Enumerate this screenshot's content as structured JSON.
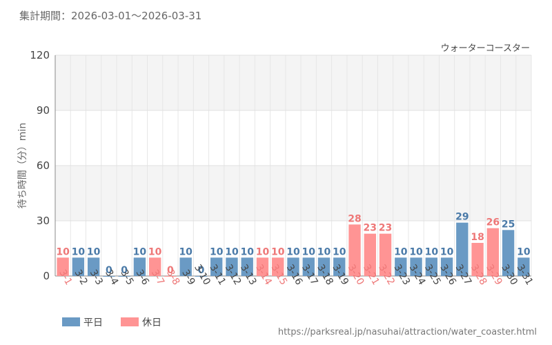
{
  "header": {
    "period_label": "集計期間：2026-03-01～2026-03-31"
  },
  "footer": {
    "url": "https://parksreal.jp/nasuhai/attraction/water_coaster.html"
  },
  "colors": {
    "weekday": "#6a9ac4",
    "holiday": "#ff9494",
    "weekday_label": "#4a7aa8",
    "holiday_label": "#ee7777"
  },
  "chart_data": {
    "type": "bar",
    "title": "ウォーターコースター",
    "ylabel": "待ち時間（分）min",
    "ylim": [
      0,
      120
    ],
    "yticks": [
      0,
      30,
      60,
      90,
      120
    ],
    "categories": [
      "3-1",
      "3-2",
      "3-3",
      "3-4",
      "3-5",
      "3-6",
      "3-7",
      "3-8",
      "3-9",
      "3-10",
      "3-11",
      "3-12",
      "3-13",
      "3-14",
      "3-15",
      "3-16",
      "3-17",
      "3-18",
      "3-19",
      "3-20",
      "3-21",
      "3-22",
      "3-23",
      "3-24",
      "3-25",
      "3-26",
      "3-27",
      "3-28",
      "3-29",
      "3-30",
      "3-31"
    ],
    "values": [
      10,
      10,
      10,
      0,
      0,
      10,
      10,
      0,
      10,
      0,
      10,
      10,
      10,
      10,
      10,
      10,
      10,
      10,
      10,
      28,
      23,
      23,
      10,
      10,
      10,
      10,
      29,
      18,
      26,
      25,
      10
    ],
    "day_types": [
      "holiday",
      "weekday",
      "weekday",
      "weekday",
      "weekday",
      "weekday",
      "holiday",
      "holiday",
      "weekday",
      "weekday",
      "weekday",
      "weekday",
      "weekday",
      "holiday",
      "holiday",
      "weekday",
      "weekday",
      "weekday",
      "weekday",
      "holiday",
      "holiday",
      "holiday",
      "weekday",
      "weekday",
      "weekday",
      "weekday",
      "weekday",
      "holiday",
      "holiday",
      "weekday",
      "weekday"
    ],
    "legend": [
      {
        "key": "weekday",
        "label": "平日"
      },
      {
        "key": "holiday",
        "label": "休日"
      }
    ],
    "legend_position": "bottom-left",
    "grid": true
  }
}
